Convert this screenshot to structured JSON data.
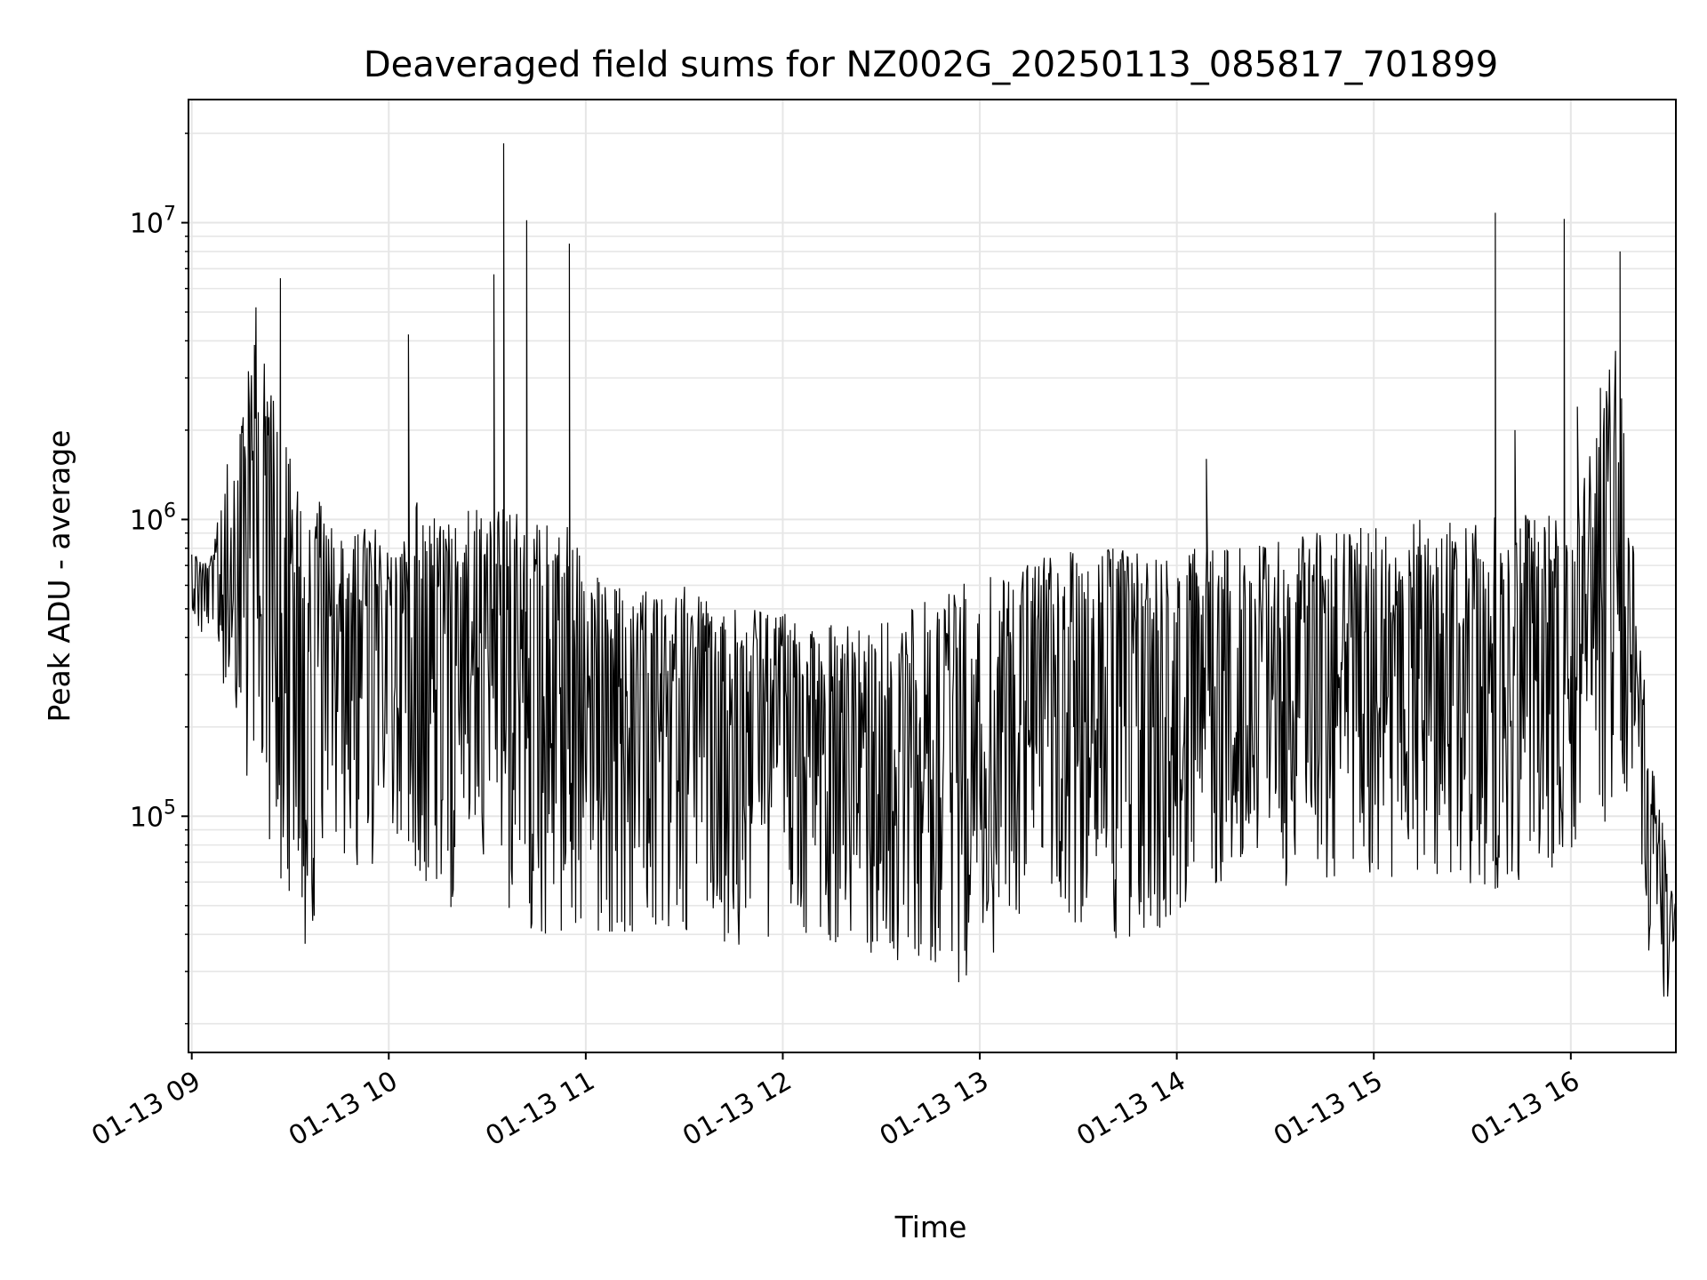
{
  "chart_data": {
    "type": "line",
    "title": "Deaveraged field sums for NZ002G_20250113_085817_701899",
    "xlabel": "Time",
    "ylabel": "Peak ADU - average",
    "yscale": "log",
    "ylim": [
      16000,
      26000000
    ],
    "y_ticks": [
      {
        "value": 100000,
        "base": "10",
        "exp": "5"
      },
      {
        "value": 1000000,
        "base": "10",
        "exp": "6"
      },
      {
        "value": 10000000,
        "base": "10",
        "exp": "7"
      }
    ],
    "xlim": [
      "2025-01-13 08:59",
      "2025-01-13 16:32"
    ],
    "x_ticks": [
      {
        "value": "2025-01-13 09:00",
        "label": "01-13 09"
      },
      {
        "value": "2025-01-13 10:00",
        "label": "01-13 10"
      },
      {
        "value": "2025-01-13 11:00",
        "label": "01-13 11"
      },
      {
        "value": "2025-01-13 12:00",
        "label": "01-13 12"
      },
      {
        "value": "2025-01-13 13:00",
        "label": "01-13 13"
      },
      {
        "value": "2025-01-13 14:00",
        "label": "01-13 14"
      },
      {
        "value": "2025-01-13 15:00",
        "label": "01-13 15"
      },
      {
        "value": "2025-01-13 16:00",
        "label": "01-13 16"
      }
    ],
    "grid": true,
    "line_color": "#000000",
    "grid_color": "#e6e6e6",
    "series": [
      {
        "x": [
          "2025-01-13 09:00",
          "2025-01-13 09:05",
          "2025-01-13 09:10",
          "2025-01-13 09:15",
          "2025-01-13 09:20",
          "2025-01-13 09:25",
          "2025-01-13 09:30",
          "2025-01-13 09:35",
          "2025-01-13 09:40",
          "2025-01-13 09:45",
          "2025-01-13 09:50",
          "2025-01-13 09:55",
          "2025-01-13 10:00",
          "2025-01-13 10:05",
          "2025-01-13 10:10",
          "2025-01-13 10:15",
          "2025-01-13 10:20",
          "2025-01-13 10:25",
          "2025-01-13 10:30",
          "2025-01-13 10:35",
          "2025-01-13 10:40",
          "2025-01-13 10:45",
          "2025-01-13 10:50",
          "2025-01-13 10:55",
          "2025-01-13 11:00",
          "2025-01-13 11:10",
          "2025-01-13 11:20",
          "2025-01-13 11:30",
          "2025-01-13 11:40",
          "2025-01-13 11:50",
          "2025-01-13 12:00",
          "2025-01-13 12:10",
          "2025-01-13 12:20",
          "2025-01-13 12:30",
          "2025-01-13 12:40",
          "2025-01-13 12:50",
          "2025-01-13 13:00",
          "2025-01-13 13:10",
          "2025-01-13 13:20",
          "2025-01-13 13:30",
          "2025-01-13 13:40",
          "2025-01-13 13:50",
          "2025-01-13 14:00",
          "2025-01-13 14:10",
          "2025-01-13 14:20",
          "2025-01-13 14:30",
          "2025-01-13 14:40",
          "2025-01-13 14:50",
          "2025-01-13 15:00",
          "2025-01-13 15:10",
          "2025-01-13 15:20",
          "2025-01-13 15:30",
          "2025-01-13 15:35",
          "2025-01-13 15:40",
          "2025-01-13 15:45",
          "2025-01-13 15:50",
          "2025-01-13 15:55",
          "2025-01-13 16:00",
          "2025-01-13 16:05",
          "2025-01-13 16:10",
          "2025-01-13 16:15",
          "2025-01-13 16:18",
          "2025-01-13 16:21",
          "2025-01-13 16:24",
          "2025-01-13 16:27",
          "2025-01-13 16:30",
          "2025-01-13 16:32"
        ],
        "y_low": [
          450000,
          380000,
          250000,
          150000,
          100000,
          65000,
          37000,
          35000,
          60000,
          70000,
          60000,
          65000,
          70000,
          80000,
          60000,
          55000,
          45000,
          47000,
          47000,
          43000,
          45000,
          40000,
          35000,
          35000,
          40000,
          38000,
          37000,
          40000,
          38000,
          36000,
          40000,
          38000,
          35000,
          33000,
          30000,
          25000,
          30000,
          40000,
          60000,
          40000,
          38000,
          37000,
          45000,
          55000,
          60000,
          55000,
          50000,
          60000,
          55000,
          60000,
          60000,
          55000,
          60000,
          50000,
          60000,
          65000,
          65000,
          70000,
          75000,
          90000,
          110000,
          70000,
          45000,
          30000,
          22000,
          25000,
          45000
        ],
        "y_high": [
          800000,
          700000,
          1400000,
          2500000,
          6000000,
          2500000,
          2000000,
          1000000,
          1200000,
          900000,
          900000,
          1000000,
          800000,
          900000,
          1300000,
          1000000,
          1000000,
          1200000,
          1100000,
          1100000,
          1100000,
          1000000,
          1000000,
          1000000,
          700000,
          600000,
          600000,
          600000,
          500000,
          500000,
          500000,
          450000,
          450000,
          500000,
          500000,
          600000,
          650000,
          700000,
          750000,
          800000,
          800000,
          800000,
          800000,
          800000,
          800000,
          850000,
          900000,
          950000,
          950000,
          1000000,
          1000000,
          1000000,
          1000000,
          1050000,
          1050000,
          1100000,
          1000000,
          1100000,
          1500000,
          3500000,
          4000000,
          1500000,
          400000,
          200000,
          120000,
          60000,
          50000
        ],
        "spikes": [
          {
            "x": "2025-01-13 09:23",
            "y": 2500000
          },
          {
            "x": "2025-01-13 09:27",
            "y": 6500000
          },
          {
            "x": "2025-01-13 10:06",
            "y": 4200000
          },
          {
            "x": "2025-01-13 10:32",
            "y": 6700000
          },
          {
            "x": "2025-01-13 10:35",
            "y": 18500000
          },
          {
            "x": "2025-01-13 10:42",
            "y": 10200000
          },
          {
            "x": "2025-01-13 10:55",
            "y": 8500000
          },
          {
            "x": "2025-01-13 14:09",
            "y": 1600000
          },
          {
            "x": "2025-01-13 15:37",
            "y": 10800000
          },
          {
            "x": "2025-01-13 15:43",
            "y": 2000000
          },
          {
            "x": "2025-01-13 15:58",
            "y": 10300000
          },
          {
            "x": "2025-01-13 16:02",
            "y": 2400000
          },
          {
            "x": "2025-01-13 16:15",
            "y": 8000000
          }
        ]
      }
    ]
  }
}
